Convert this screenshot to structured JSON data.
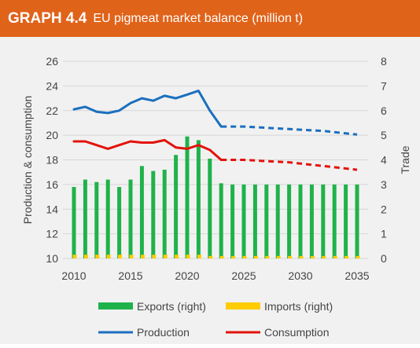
{
  "header": {
    "graph_number": "GRAPH 4.4",
    "title": "EU pigmeat market balance (million t)"
  },
  "colors": {
    "header_bg": "#e0631a",
    "exports": "#1fb24a",
    "imports": "#ffcc00",
    "production": "#1a6fbf",
    "consumption": "#e3120b",
    "panel_bg": "#f1f1f1"
  },
  "chart_data": {
    "type": "bar+line",
    "x": [
      2010,
      2011,
      2012,
      2013,
      2014,
      2015,
      2016,
      2017,
      2018,
      2019,
      2020,
      2021,
      2022,
      2023,
      2024,
      2025,
      2026,
      2027,
      2028,
      2029,
      2030,
      2031,
      2032,
      2033,
      2034,
      2035
    ],
    "projection_start": 2023,
    "y_left": {
      "label": "Production & consumption",
      "ticks": [
        10,
        12,
        14,
        16,
        18,
        20,
        22,
        24,
        26
      ],
      "range": [
        10,
        26
      ]
    },
    "y_right": {
      "label": "Trade",
      "ticks": [
        0,
        1,
        2,
        3,
        4,
        5,
        6,
        7,
        8
      ],
      "range": [
        0,
        8
      ]
    },
    "x_ticks": [
      2010,
      2015,
      2020,
      2025,
      2030,
      2035
    ],
    "series": [
      {
        "name": "Exports (right)",
        "kind": "bar",
        "axis": "right",
        "values": [
          2.9,
          3.2,
          3.1,
          3.2,
          2.9,
          3.2,
          3.75,
          3.55,
          3.6,
          4.2,
          4.95,
          4.8,
          4.05,
          3.05,
          3.0,
          3.0,
          3.0,
          3.0,
          3.0,
          3.0,
          3.0,
          3.0,
          3.0,
          3.0,
          3.0,
          3.0
        ]
      },
      {
        "name": "Imports (right)",
        "kind": "bar",
        "axis": "right",
        "values": [
          0.15,
          0.15,
          0.15,
          0.15,
          0.15,
          0.15,
          0.15,
          0.15,
          0.15,
          0.15,
          0.15,
          0.15,
          0.1,
          0.1,
          0.1,
          0.1,
          0.1,
          0.1,
          0.1,
          0.1,
          0.1,
          0.1,
          0.1,
          0.1,
          0.1,
          0.1
        ]
      },
      {
        "name": "Production",
        "kind": "line",
        "axis": "left",
        "values": [
          22.1,
          22.3,
          21.9,
          21.8,
          22.0,
          22.6,
          23.0,
          22.8,
          23.2,
          23.0,
          23.3,
          23.6,
          22.0,
          20.7,
          20.7,
          20.7,
          20.65,
          20.6,
          20.55,
          20.5,
          20.45,
          20.4,
          20.35,
          20.25,
          20.15,
          20.05
        ]
      },
      {
        "name": "Consumption",
        "kind": "line",
        "axis": "left",
        "values": [
          19.5,
          19.5,
          19.2,
          18.9,
          19.2,
          19.5,
          19.4,
          19.4,
          19.6,
          19.0,
          18.9,
          19.2,
          18.8,
          18.0,
          18.0,
          18.0,
          17.95,
          17.9,
          17.85,
          17.8,
          17.7,
          17.6,
          17.5,
          17.4,
          17.3,
          17.2
        ]
      }
    ]
  }
}
